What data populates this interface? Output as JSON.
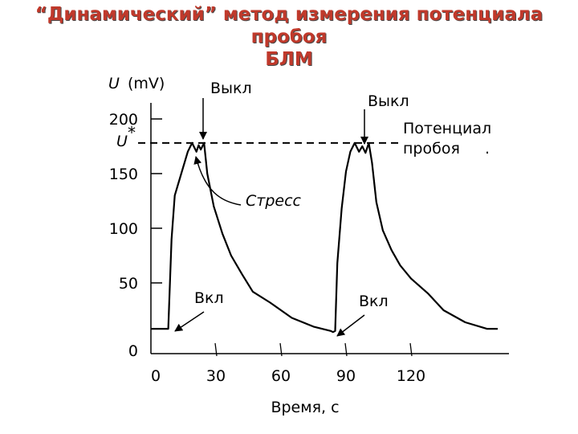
{
  "title_line1": "“Динамический” метод измерения потенциала пробоя",
  "title_line2": "БЛМ",
  "chart_data": {
    "type": "line",
    "ylabel_symbol": "U",
    "ylabel_unit": "(mV)",
    "xlabel": "Время, с",
    "x_ticks": [
      "0",
      "30",
      "60",
      "90",
      "120"
    ],
    "y_ticks": [
      "0",
      "50",
      "100",
      "150",
      "200"
    ],
    "threshold_symbol": "U",
    "threshold_star": "*",
    "threshold_value": 178,
    "annotations": {
      "off_1": "Выкл",
      "off_2": "Выкл",
      "on_1": "Вкл",
      "on_2": "Вкл",
      "stress": "Стресс",
      "breakdown_line1": "Потенциал",
      "breakdown_line2": "пробоя",
      "breakdown_dot": "."
    },
    "xlim": [
      0,
      165
    ],
    "ylim": [
      0,
      200
    ],
    "series": [
      {
        "values": [
          [
            0,
            8
          ],
          [
            8,
            8
          ],
          [
            9.5,
            90
          ],
          [
            11,
            130
          ],
          [
            14,
            150
          ],
          [
            17,
            170
          ],
          [
            19,
            178
          ],
          [
            21,
            170
          ],
          [
            22,
            176
          ],
          [
            23,
            172
          ],
          [
            24.5,
            178
          ],
          [
            26,
            150
          ],
          [
            29,
            120
          ],
          [
            33,
            95
          ],
          [
            37,
            75
          ],
          [
            42,
            58
          ],
          [
            47,
            42
          ],
          [
            55,
            32
          ],
          [
            65,
            18
          ],
          [
            75,
            10
          ],
          [
            83,
            6
          ],
          [
            84,
            5
          ],
          [
            85,
            6
          ],
          [
            86,
            68
          ],
          [
            88,
            118
          ],
          [
            90,
            152
          ],
          [
            92,
            170
          ],
          [
            94,
            178
          ],
          [
            96,
            170
          ],
          [
            97.5,
            175
          ],
          [
            99,
            169
          ],
          [
            100.5,
            178
          ],
          [
            102,
            160
          ],
          [
            104,
            124
          ],
          [
            107,
            98
          ],
          [
            111,
            80
          ],
          [
            115,
            66
          ],
          [
            120,
            54
          ],
          [
            128,
            40
          ],
          [
            135,
            25
          ],
          [
            145,
            14
          ],
          [
            155,
            8
          ],
          [
            160,
            8
          ]
        ]
      }
    ]
  }
}
